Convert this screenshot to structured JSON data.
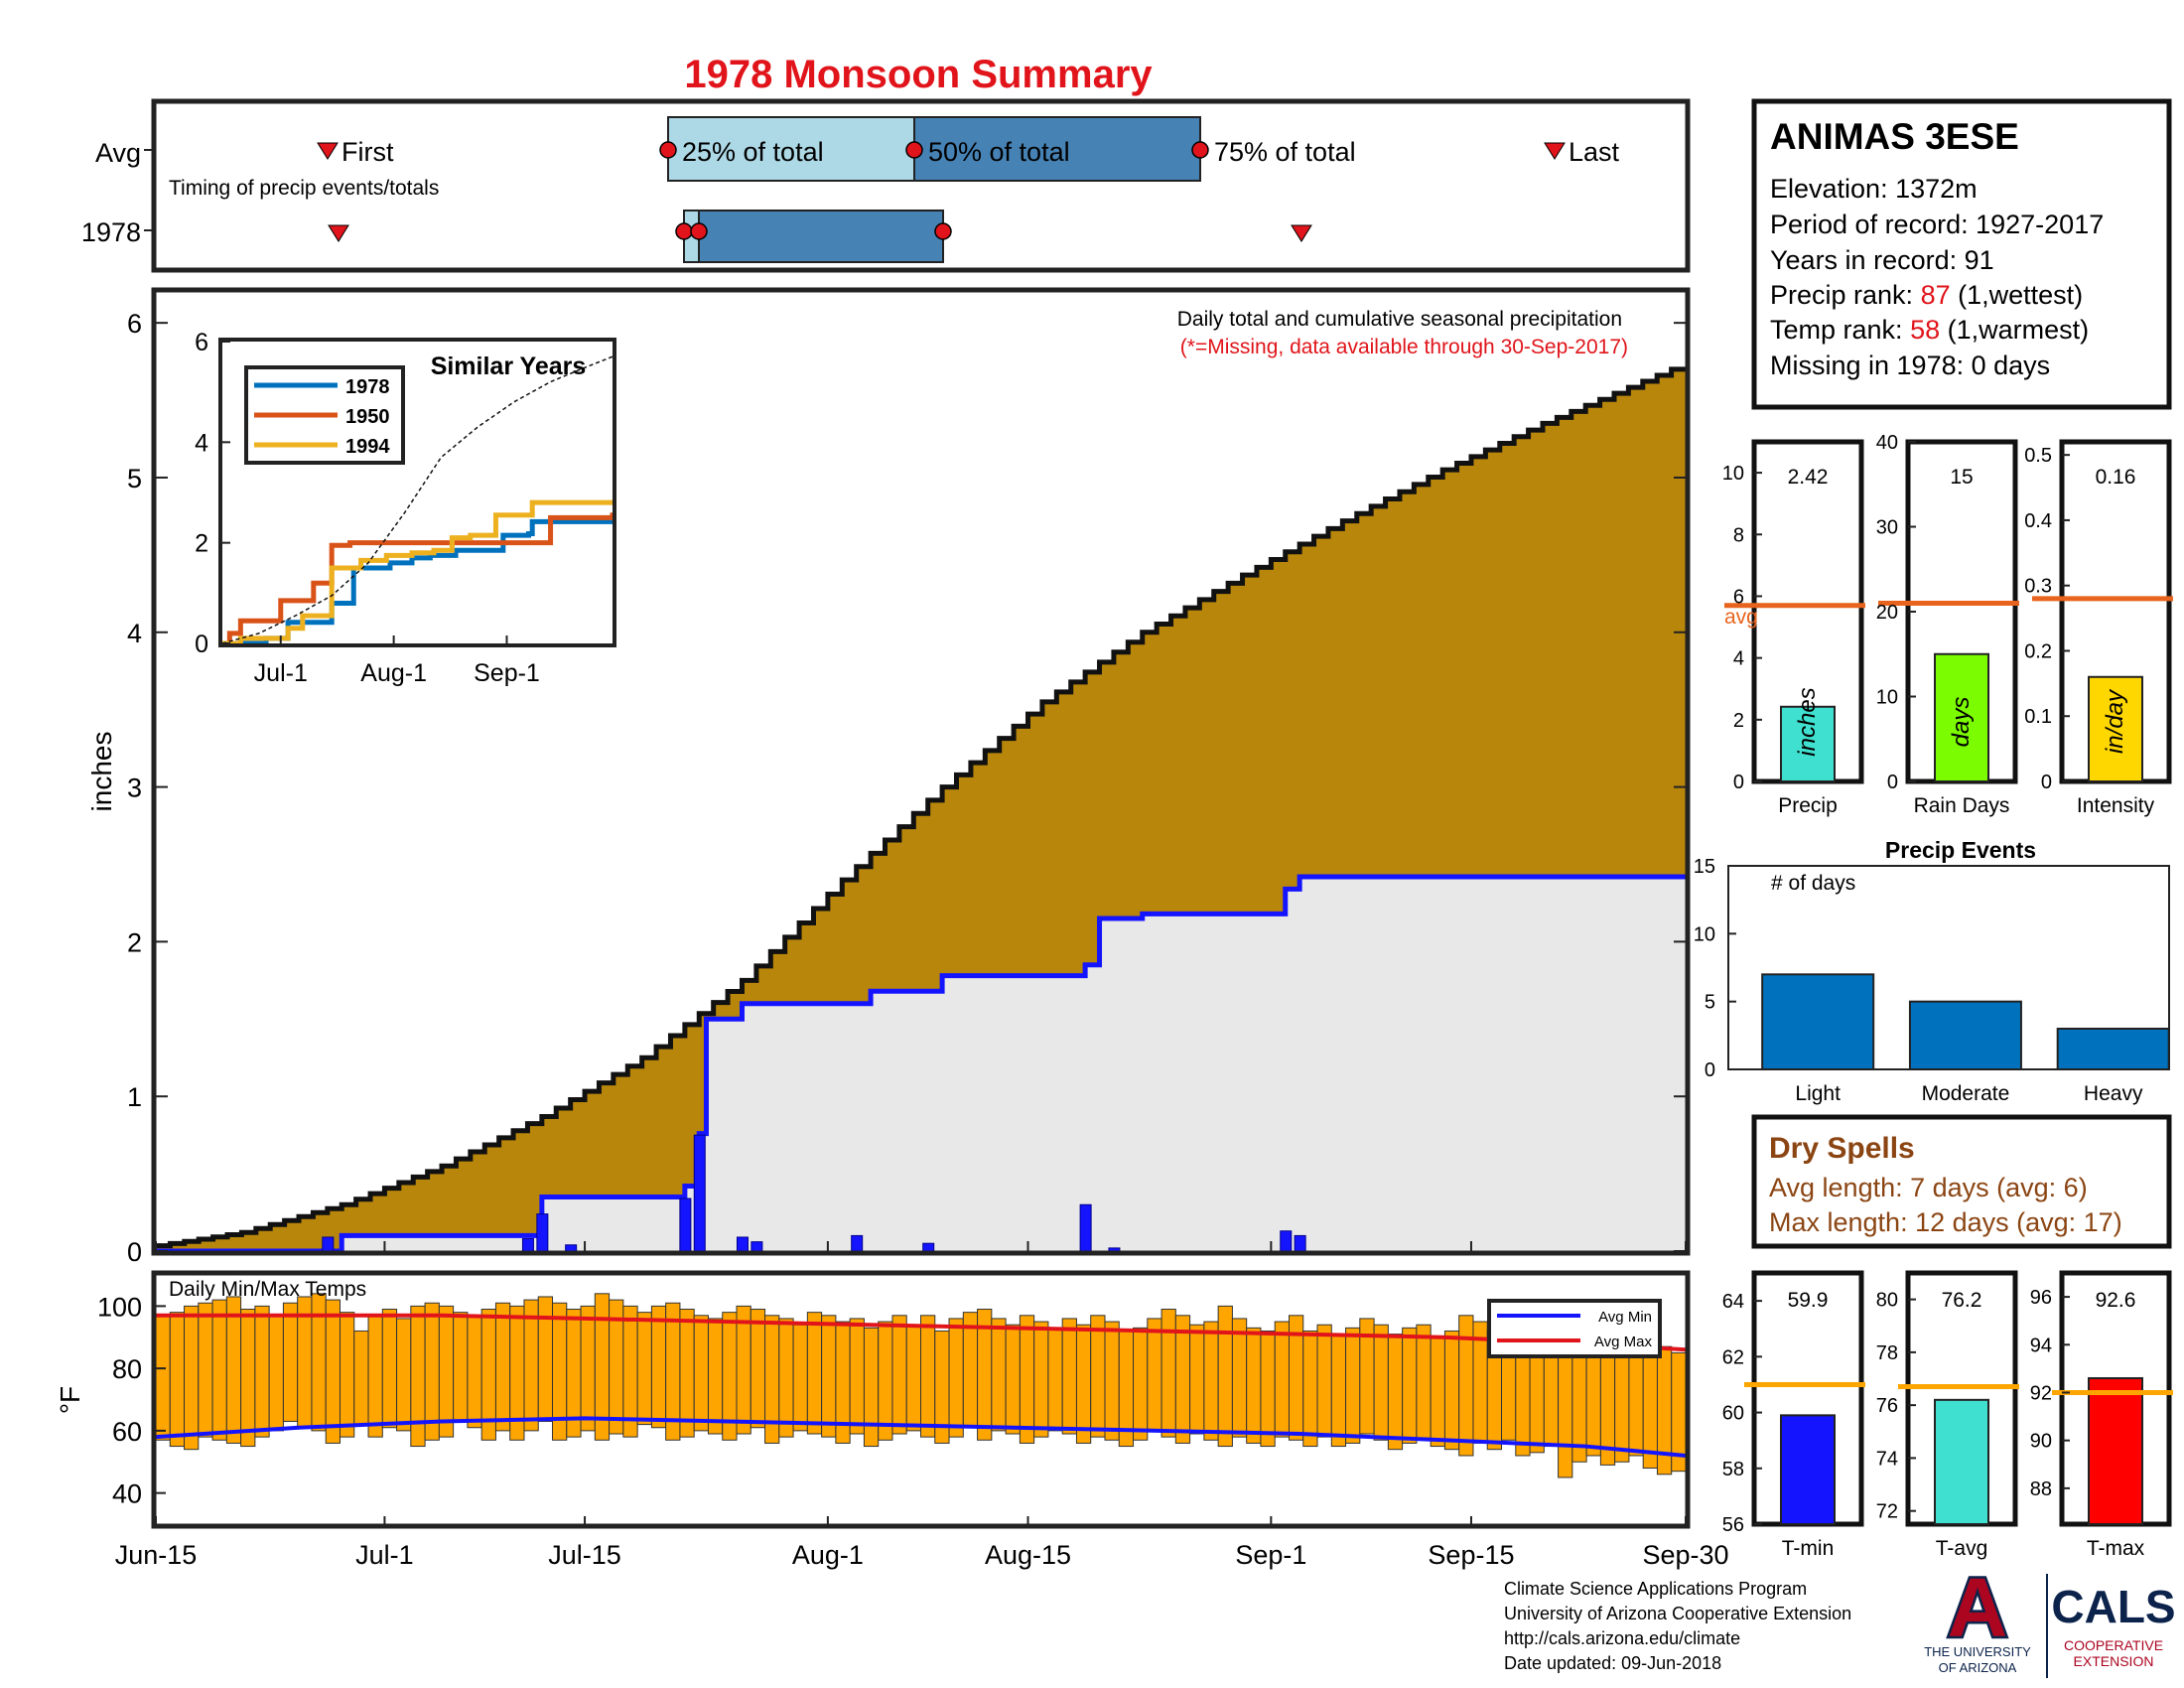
{
  "title": "1978 Monsoon Summary",
  "timing": {
    "row_labels": [
      "Avg",
      "1978"
    ],
    "note": "Timing of precip events/totals",
    "first_label": "First",
    "last_label": "Last",
    "p25_label": "25% of total",
    "p50_label": "50% of total",
    "p75_label": "75% of total"
  },
  "station": {
    "name": "ANIMAS 3ESE",
    "elevation": "Elevation: 1372m",
    "period": "Period of record: 1927-2017",
    "years": "Years in record: 91",
    "precip_rank_prefix": "Precip rank: ",
    "precip_rank_value": "87",
    "precip_rank_suffix": " (1,wettest)",
    "temp_rank_prefix": "Temp rank: ",
    "temp_rank_value": "58",
    "temp_rank_suffix": " (1,warmest)",
    "missing": "Missing in 1978: 0 days"
  },
  "main": {
    "ylabel": "inches",
    "note1": "Daily total and cumulative seasonal precipitation",
    "note2": "(*=Missing, data available through 30-Sep-2017)",
    "y_ticks": [
      "0",
      "1",
      "2",
      "3",
      "4",
      "5",
      "6"
    ]
  },
  "x_ticks": [
    "Jun-15",
    "Jul-1",
    "Jul-15",
    "Aug-1",
    "Aug-15",
    "Sep-1",
    "Sep-15",
    "Sep-30"
  ],
  "inset": {
    "title": "Similar Years",
    "legend": [
      "1978",
      "1950",
      "1994"
    ],
    "y_ticks": [
      "0",
      "2",
      "4",
      "6"
    ],
    "x_ticks": [
      "Jul-1",
      "Aug-1",
      "Sep-1"
    ]
  },
  "small_bars": {
    "precip": {
      "value": "2.42",
      "label": "Precip",
      "unit": "inches",
      "avg_label": "avg",
      "ticks": [
        "0",
        "2",
        "4",
        "6",
        "8",
        "10"
      ]
    },
    "rain_days": {
      "value": "15",
      "label": "Rain Days",
      "unit": "days",
      "ticks": [
        "0",
        "10",
        "20",
        "30",
        "40"
      ]
    },
    "intensity": {
      "value": "0.16",
      "label": "Intensity",
      "unit": "in/day",
      "ticks": [
        "0",
        "0.1",
        "0.2",
        "0.3",
        "0.4",
        "0.5"
      ]
    }
  },
  "events": {
    "title": "Precip Events",
    "ylabel": "# of days",
    "categories": [
      "Light",
      "Moderate",
      "Heavy"
    ],
    "ticks": [
      "0",
      "5",
      "10",
      "15"
    ]
  },
  "dry_spells": {
    "title": "Dry Spells",
    "avg": "Avg length: 7 days (avg: 6)",
    "max": "Max length: 12 days (avg: 17)"
  },
  "temps": {
    "title": "Daily Min/Max Temps",
    "ylabel": "°F",
    "y_ticks": [
      "40",
      "60",
      "80",
      "100"
    ],
    "legend": [
      "Avg Min",
      "Avg Max"
    ]
  },
  "temp_bars": {
    "tmin": {
      "value": "59.9",
      "label": "T-min",
      "ticks": [
        "56",
        "58",
        "60",
        "62",
        "64"
      ]
    },
    "tavg": {
      "value": "76.2",
      "label": "T-avg",
      "ticks": [
        "72",
        "74",
        "76",
        "78",
        "80"
      ]
    },
    "tmax": {
      "value": "92.6",
      "label": "T-max",
      "ticks": [
        "88",
        "90",
        "92",
        "94",
        "96"
      ]
    }
  },
  "footer": {
    "line1": "Climate Science Applications Program",
    "line2": "University of Arizona Cooperative Extension",
    "line3": "http://cals.arizona.edu/climate",
    "line4": " Date updated: 09-Jun-2018"
  },
  "logos": {
    "ua_letter": "A",
    "ua_line1": "THE UNIVERSITY",
    "ua_line2": "OF ARIZONA",
    "cals": "CALS",
    "cals_line1": "COOPERATIVE",
    "cals_line2": "EXTENSION"
  },
  "colors": {
    "title_red": "#e0141a",
    "cumulative_avg_fill": "#b8860b",
    "observed_fill": "#e8e8e8",
    "observed_line": "#1414ff",
    "timing_light": "#add8e6",
    "timing_dark": "#4682b4",
    "temp_bar": "#ffa500",
    "avg_line": "#e8641e",
    "dry_spell_brown": "#8b4513"
  },
  "chart_data": [
    {
      "id": "cumulative",
      "type": "area",
      "title": "Daily total and cumulative seasonal precipitation",
      "ylabel": "inches",
      "xlim": [
        0,
        107
      ],
      "ylim": [
        0,
        6.2
      ],
      "x_tick_days": [
        0,
        16,
        30,
        47,
        61,
        78,
        92,
        107
      ],
      "series": [
        {
          "name": "Avg",
          "x": [
            0,
            7,
            14,
            21,
            28,
            35,
            42,
            49,
            56,
            63,
            70,
            77,
            84,
            91,
            98,
            107
          ],
          "y": [
            0.02,
            0.12,
            0.3,
            0.55,
            0.87,
            1.25,
            1.75,
            2.4,
            3.0,
            3.55,
            4.0,
            4.37,
            4.72,
            5.05,
            5.35,
            5.7
          ]
        },
        {
          "name": "1978",
          "x": [
            0,
            12,
            13,
            26,
            27,
            37,
            37.5,
            38,
            38.5,
            40,
            41,
            50,
            55,
            65,
            66,
            69,
            78,
            79,
            80,
            107
          ],
          "y": [
            0.0,
            0.0,
            0.1,
            0.1,
            0.35,
            0.42,
            0.42,
            0.76,
            1.5,
            1.5,
            1.6,
            1.68,
            1.78,
            1.85,
            2.15,
            2.18,
            2.18,
            2.34,
            2.42,
            2.42
          ]
        }
      ],
      "daily_bars": {
        "x": [
          12,
          26,
          27,
          29,
          37,
          38,
          41,
          42,
          49,
          54,
          65,
          67,
          79,
          80
        ],
        "y": [
          0.09,
          0.08,
          0.24,
          0.04,
          0.34,
          0.75,
          0.09,
          0.06,
          0.1,
          0.05,
          0.3,
          0.02,
          0.13,
          0.1
        ]
      }
    },
    {
      "id": "similar_years",
      "type": "line",
      "title": "Similar Years",
      "x_ticks": [
        "Jul-1",
        "Aug-1",
        "Sep-1"
      ],
      "ylim": [
        0,
        6
      ],
      "series": [
        {
          "name": "1978",
          "x": [
            0,
            10,
            12,
            15,
            18,
            25,
            30,
            36,
            46,
            52,
            57,
            64,
            77,
            84,
            85,
            107
          ],
          "y": [
            0,
            0,
            0.1,
            0.1,
            0.42,
            0.42,
            0.8,
            1.5,
            1.6,
            1.7,
            1.75,
            1.85,
            2.15,
            2.18,
            2.42,
            2.42
          ]
        },
        {
          "name": "1950",
          "x": [
            0,
            2,
            5,
            12,
            16,
            21,
            25,
            30,
            35,
            42,
            52,
            60,
            70,
            82,
            85,
            90,
            107
          ],
          "y": [
            0,
            0.2,
            0.45,
            0.45,
            0.85,
            0.85,
            1.2,
            1.95,
            2.0,
            2.0,
            2.0,
            2.0,
            2.0,
            2.0,
            2.0,
            2.5,
            2.6
          ]
        },
        {
          "name": "1994",
          "x": [
            0,
            5,
            12,
            18,
            22,
            30,
            38,
            45,
            52,
            58,
            63,
            68,
            75,
            85,
            95,
            107
          ],
          "y": [
            0,
            0.1,
            0.1,
            0.3,
            0.55,
            1.5,
            1.65,
            1.75,
            1.8,
            1.85,
            2.1,
            2.15,
            2.55,
            2.8,
            2.8,
            2.8
          ]
        },
        {
          "name": "Avg",
          "x": [
            0,
            10,
            20,
            30,
            40,
            50,
            60,
            70,
            80,
            90,
            100,
            107
          ],
          "y": [
            0.0,
            0.2,
            0.55,
            0.95,
            1.6,
            2.6,
            3.7,
            4.3,
            4.8,
            5.2,
            5.5,
            5.7
          ]
        }
      ]
    },
    {
      "id": "precip_total",
      "type": "bar",
      "categories": [
        "Precip"
      ],
      "values": [
        2.42
      ],
      "avg": 5.7,
      "ylim": [
        0,
        11
      ]
    },
    {
      "id": "rain_days",
      "type": "bar",
      "categories": [
        "Rain Days"
      ],
      "values": [
        15
      ],
      "avg": 21,
      "ylim": [
        0,
        40
      ]
    },
    {
      "id": "intensity",
      "type": "bar",
      "categories": [
        "Intensity"
      ],
      "values": [
        0.16
      ],
      "avg": 0.28,
      "ylim": [
        0,
        0.52
      ]
    },
    {
      "id": "precip_events",
      "type": "bar",
      "title": "Precip Events",
      "ylabel": "# of days",
      "categories": [
        "Light",
        "Moderate",
        "Heavy"
      ],
      "values": [
        7,
        5,
        3
      ],
      "ylim": [
        0,
        15
      ]
    },
    {
      "id": "daily_temps",
      "type": "bar",
      "title": "Daily Min/Max Temps",
      "ylabel": "°F",
      "ylim": [
        30,
        110
      ],
      "tmax": [
        97,
        98,
        100,
        101,
        102,
        103,
        99,
        100,
        97,
        101,
        103,
        104,
        102,
        98,
        92,
        97,
        99,
        96,
        100,
        101,
        100,
        98,
        97,
        99,
        101,
        100,
        102,
        103,
        101,
        99,
        100,
        104,
        102,
        100,
        98,
        100,
        101,
        99,
        97,
        96,
        98,
        100,
        99,
        97,
        96,
        94,
        98,
        97,
        95,
        96,
        93,
        95,
        97,
        94,
        97,
        92,
        96,
        98,
        99,
        96,
        94,
        97,
        95,
        93,
        96,
        94,
        97,
        95,
        92,
        93,
        96,
        99,
        97,
        94,
        95,
        100,
        96,
        93,
        92,
        95,
        97,
        92,
        94,
        91,
        93,
        96,
        94,
        91,
        93,
        94,
        90,
        92,
        97,
        95,
        92,
        94,
        93,
        89,
        91,
        95,
        89,
        86,
        90,
        88,
        92,
        86,
        87,
        85
      ],
      "tmin": [
        57,
        55,
        54,
        58,
        57,
        56,
        55,
        58,
        60,
        63,
        61,
        60,
        56,
        58,
        62,
        58,
        61,
        60,
        55,
        57,
        58,
        63,
        61,
        57,
        60,
        57,
        60,
        63,
        57,
        58,
        60,
        57,
        59,
        58,
        62,
        61,
        57,
        58,
        60,
        59,
        57,
        59,
        61,
        56,
        58,
        60,
        59,
        58,
        56,
        59,
        55,
        57,
        59,
        60,
        58,
        56,
        58,
        61,
        57,
        60,
        59,
        56,
        58,
        60,
        59,
        56,
        58,
        57,
        55,
        57,
        60,
        58,
        56,
        59,
        57,
        55,
        58,
        56,
        55,
        58,
        57,
        55,
        58,
        55,
        56,
        59,
        57,
        54,
        56,
        57,
        55,
        54,
        52,
        56,
        54,
        57,
        52,
        53,
        55,
        45,
        50,
        52,
        49,
        50,
        52,
        48,
        46,
        47
      ],
      "series": [
        {
          "name": "Avg Min",
          "x": [
            0,
            10,
            20,
            30,
            40,
            50,
            60,
            70,
            80,
            90,
            100,
            107
          ],
          "y": [
            58,
            61,
            63,
            64,
            63,
            62,
            61,
            60,
            59,
            57,
            55,
            52
          ]
        },
        {
          "name": "Avg Max",
          "x": [
            0,
            10,
            20,
            30,
            40,
            50,
            60,
            70,
            80,
            90,
            100,
            107
          ],
          "y": [
            97,
            97,
            97,
            96,
            95,
            94,
            93,
            92,
            91,
            90,
            88,
            86
          ]
        }
      ]
    },
    {
      "id": "tmin",
      "type": "bar",
      "categories": [
        "T-min"
      ],
      "values": [
        59.9
      ],
      "avg": 61,
      "ylim": [
        56,
        65
      ]
    },
    {
      "id": "tavg",
      "type": "bar",
      "categories": [
        "T-avg"
      ],
      "values": [
        76.2
      ],
      "avg": 76.7,
      "ylim": [
        71.5,
        81
      ]
    },
    {
      "id": "tmax",
      "type": "bar",
      "categories": [
        "T-max"
      ],
      "values": [
        92.6
      ],
      "avg": 92,
      "ylim": [
        86.5,
        97
      ]
    }
  ]
}
